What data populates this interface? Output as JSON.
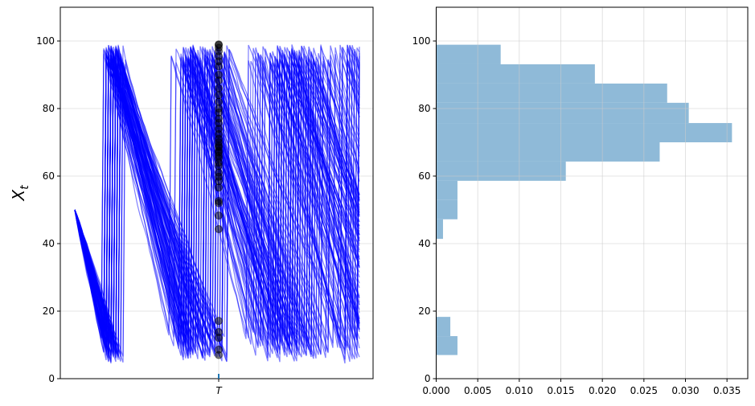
{
  "chart_data": [
    {
      "type": "line",
      "ylabel": "X",
      "ylabel_subscript": "t",
      "ylim": [
        0,
        110
      ],
      "yticks": [
        "0",
        "20",
        "40",
        "60",
        "80",
        "100"
      ],
      "xticks": [
        "T"
      ],
      "grid": true,
      "line_color": "#0000ff",
      "marker_color": "#000000",
      "tick_mark_color": "#1f77b4",
      "start_value": 50,
      "values_at_T": [
        99,
        98.8,
        98,
        97,
        95.5,
        94,
        92.5,
        90,
        88.3,
        86,
        84,
        82,
        80,
        78.8,
        77,
        75.7,
        74,
        72.4,
        71,
        70,
        69,
        68.5,
        67.5,
        67,
        66,
        65.3,
        64,
        63,
        61,
        59.8,
        58.5,
        56.6,
        52.6,
        52,
        48.3,
        44.3,
        17.1,
        13.8,
        12.1,
        8.6,
        7
      ]
    },
    {
      "type": "histogram",
      "orientation": "horizontal",
      "xlim": [
        0,
        0.0375
      ],
      "ylim": [
        0,
        110
      ],
      "xticks": [
        "0.000",
        "0.005",
        "0.010",
        "0.015",
        "0.020",
        "0.025",
        "0.030",
        "0.035"
      ],
      "yticks": [
        "0",
        "20",
        "40",
        "60",
        "80",
        "100"
      ],
      "grid": true,
      "bar_color": "#8fbad8",
      "bins": [
        {
          "low": 7.0,
          "high": 12.6,
          "density": 0.00256
        },
        {
          "low": 12.6,
          "high": 18.3,
          "density": 0.0017
        },
        {
          "low": 41.4,
          "high": 47.2,
          "density": 0.00082
        },
        {
          "low": 47.2,
          "high": 52.9,
          "density": 0.00256
        },
        {
          "low": 52.9,
          "high": 58.6,
          "density": 0.00256
        },
        {
          "low": 58.6,
          "high": 64.3,
          "density": 0.0156
        },
        {
          "low": 64.3,
          "high": 70.0,
          "density": 0.0269
        },
        {
          "low": 70.0,
          "high": 75.7,
          "density": 0.0356
        },
        {
          "low": 75.7,
          "high": 81.7,
          "density": 0.0304
        },
        {
          "low": 81.7,
          "high": 87.4,
          "density": 0.0278
        },
        {
          "low": 87.4,
          "high": 93.1,
          "density": 0.0191
        },
        {
          "low": 93.1,
          "high": 98.9,
          "density": 0.00776
        }
      ]
    }
  ]
}
